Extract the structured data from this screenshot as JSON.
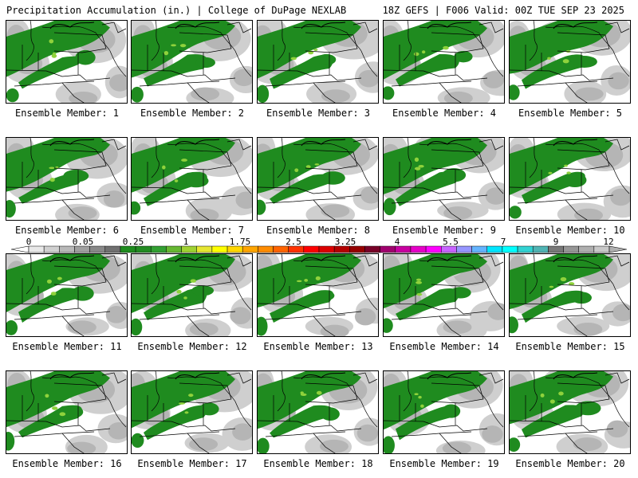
{
  "header": {
    "left": "Precipitation Accumulation (in.) | College of DuPage NEXLAB",
    "right": "18Z GEFS | F006 Valid: 00Z TUE SEP 23 2025"
  },
  "panels": [
    {
      "label": "Ensemble Member: 1"
    },
    {
      "label": "Ensemble Member: 2"
    },
    {
      "label": "Ensemble Member: 3"
    },
    {
      "label": "Ensemble Member: 4"
    },
    {
      "label": "Ensemble Member: 5"
    },
    {
      "label": "Ensemble Member: 6"
    },
    {
      "label": "Ensemble Member: 7"
    },
    {
      "label": "Ensemble Member: 8"
    },
    {
      "label": "Ensemble Member: 9"
    },
    {
      "label": "Ensemble Member: 10"
    },
    {
      "label": "Ensemble Member: 11"
    },
    {
      "label": "Ensemble Member: 12"
    },
    {
      "label": "Ensemble Member: 13"
    },
    {
      "label": "Ensemble Member: 14"
    },
    {
      "label": "Ensemble Member: 15"
    },
    {
      "label": "Ensemble Member: 16"
    },
    {
      "label": "Ensemble Member: 17"
    },
    {
      "label": "Ensemble Member: 18"
    },
    {
      "label": "Ensemble Member: 19"
    },
    {
      "label": "Ensemble Member: 20"
    }
  ],
  "colorbar": {
    "labels": [
      "0",
      "0.05",
      "0.25",
      "1",
      "1.75",
      "2.5",
      "3.25",
      "4",
      "5.5",
      "7",
      "9",
      "12"
    ],
    "colors": [
      "#e8e8e8",
      "#d0d0d0",
      "#b8b8b8",
      "#a0a0a0",
      "#888888",
      "#707070",
      "#1e8c1e",
      "#228b22",
      "#32a032",
      "#66b832",
      "#a0d232",
      "#e6e632",
      "#ffff00",
      "#ffd700",
      "#ffa500",
      "#ff8c00",
      "#ff6400",
      "#ff3200",
      "#ff0000",
      "#dc0000",
      "#b40000",
      "#960000",
      "#780028",
      "#a0006e",
      "#c800a0",
      "#e600c8",
      "#ff00ff",
      "#c864ff",
      "#9696ff",
      "#64b4ff",
      "#00e6ff",
      "#00ffff",
      "#32d2d2",
      "#50b4b4",
      "#787878",
      "#969696",
      "#afafaf",
      "#c8c8c8"
    ]
  }
}
